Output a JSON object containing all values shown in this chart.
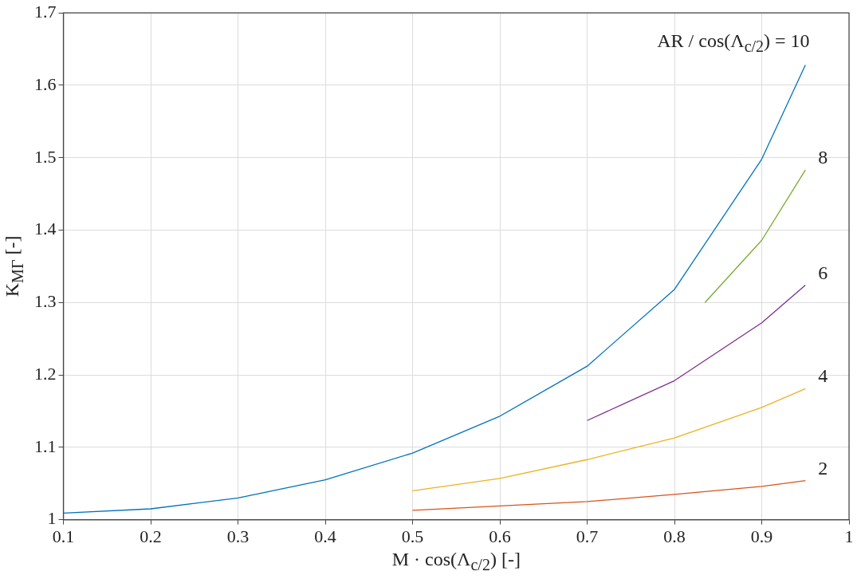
{
  "chart_data": {
    "type": "line",
    "xlabel": "M · cos(Λ$_{c/2}$) [-]",
    "ylabel": "K$_{MΓ}$ [-]",
    "xlim": [
      0.1,
      1
    ],
    "xticks": [
      0.1,
      0.2,
      0.3,
      0.4,
      0.5,
      0.6,
      0.7,
      0.8,
      0.9,
      1
    ],
    "ylim": [
      1,
      1.7
    ],
    "yticks": [
      1,
      1.1,
      1.2,
      1.3,
      1.4,
      1.5,
      1.6,
      1.7
    ],
    "grid": true,
    "legend": false,
    "marker": "none",
    "line_style": "solid",
    "series": [
      {
        "name": "AR / cos(Λ$_{c/2}$) = 10",
        "color": "#0072bd",
        "x": [
          0.1,
          0.2,
          0.3,
          0.4,
          0.5,
          0.6,
          0.7,
          0.8,
          0.9,
          0.95
        ],
        "values": [
          1.009,
          1.015,
          1.03,
          1.055,
          1.092,
          1.143,
          1.212,
          1.318,
          1.498,
          1.628
        ]
      },
      {
        "name": "8",
        "color": "#77ac30",
        "x": [
          0.835,
          0.9,
          0.95
        ],
        "values": [
          1.3,
          1.386,
          1.483
        ]
      },
      {
        "name": "6",
        "color": "#7e2f8e",
        "x": [
          0.7,
          0.8,
          0.9,
          0.95
        ],
        "values": [
          1.137,
          1.192,
          1.272,
          1.324
        ]
      },
      {
        "name": "4",
        "color": "#edb120",
        "x": [
          0.5,
          0.6,
          0.7,
          0.8,
          0.9,
          0.95
        ],
        "values": [
          1.04,
          1.057,
          1.083,
          1.113,
          1.155,
          1.181
        ]
      },
      {
        "name": "2",
        "color": "#d95319",
        "x": [
          0.5,
          0.6,
          0.7,
          0.8,
          0.9,
          0.95
        ],
        "values": [
          1.013,
          1.019,
          1.025,
          1.035,
          1.046,
          1.054
        ]
      }
    ]
  }
}
